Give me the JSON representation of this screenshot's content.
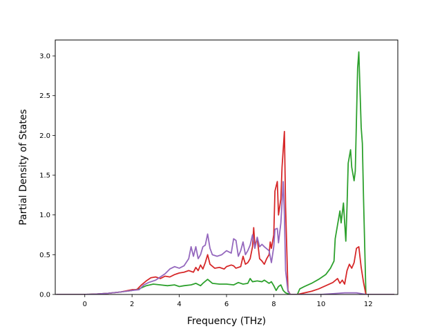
{
  "chart_data": {
    "type": "line",
    "title": "",
    "xlabel": "Frequency (THz)",
    "ylabel": "Partial Density of States",
    "xlim": [
      -1.25,
      13.25
    ],
    "ylim": [
      0.0,
      3.2
    ],
    "xticks": [
      0,
      2,
      4,
      6,
      8,
      10,
      12
    ],
    "xtick_labels": [
      "0",
      "2",
      "4",
      "6",
      "8",
      "10",
      "12"
    ],
    "yticks": [
      0.0,
      0.5,
      1.0,
      1.5,
      2.0,
      2.5,
      3.0
    ],
    "ytick_labels": [
      "0.0",
      "0.5",
      "1.0",
      "1.5",
      "2.0",
      "2.5",
      "3.0"
    ],
    "grid": false,
    "legend": "none",
    "series": [
      {
        "color": "#2ca02c",
        "points": [
          [
            -1.2,
            0.0
          ],
          [
            0.0,
            0.0
          ],
          [
            0.5,
            0.005
          ],
          [
            1.0,
            0.015
          ],
          [
            1.5,
            0.03
          ],
          [
            2.0,
            0.05
          ],
          [
            2.3,
            0.07
          ],
          [
            2.6,
            0.11
          ],
          [
            2.9,
            0.13
          ],
          [
            3.2,
            0.12
          ],
          [
            3.5,
            0.11
          ],
          [
            3.8,
            0.12
          ],
          [
            4.0,
            0.1
          ],
          [
            4.2,
            0.11
          ],
          [
            4.5,
            0.12
          ],
          [
            4.7,
            0.14
          ],
          [
            4.9,
            0.11
          ],
          [
            5.0,
            0.14
          ],
          [
            5.2,
            0.19
          ],
          [
            5.4,
            0.14
          ],
          [
            5.7,
            0.13
          ],
          [
            6.0,
            0.13
          ],
          [
            6.3,
            0.12
          ],
          [
            6.5,
            0.15
          ],
          [
            6.7,
            0.13
          ],
          [
            6.9,
            0.14
          ],
          [
            7.0,
            0.2
          ],
          [
            7.1,
            0.16
          ],
          [
            7.3,
            0.17
          ],
          [
            7.5,
            0.16
          ],
          [
            7.6,
            0.18
          ],
          [
            7.8,
            0.14
          ],
          [
            7.9,
            0.16
          ],
          [
            8.0,
            0.11
          ],
          [
            8.1,
            0.05
          ],
          [
            8.2,
            0.1
          ],
          [
            8.3,
            0.12
          ],
          [
            8.4,
            0.05
          ],
          [
            8.5,
            0.02
          ],
          [
            8.7,
            0.0
          ],
          [
            9.0,
            0.0
          ],
          [
            9.1,
            0.07
          ],
          [
            9.3,
            0.1
          ],
          [
            9.6,
            0.14
          ],
          [
            9.9,
            0.19
          ],
          [
            10.2,
            0.25
          ],
          [
            10.4,
            0.33
          ],
          [
            10.55,
            0.42
          ],
          [
            10.6,
            0.7
          ],
          [
            10.8,
            1.05
          ],
          [
            10.85,
            0.9
          ],
          [
            10.95,
            1.15
          ],
          [
            11.05,
            0.67
          ],
          [
            11.1,
            1.1
          ],
          [
            11.15,
            1.65
          ],
          [
            11.25,
            1.82
          ],
          [
            11.3,
            1.6
          ],
          [
            11.4,
            1.43
          ],
          [
            11.45,
            1.55
          ],
          [
            11.55,
            2.85
          ],
          [
            11.6,
            3.05
          ],
          [
            11.7,
            2.1
          ],
          [
            11.75,
            1.9
          ],
          [
            11.8,
            1.2
          ],
          [
            11.9,
            0.0
          ],
          [
            13.1,
            0.0
          ]
        ]
      },
      {
        "color": "#d62728",
        "points": [
          [
            -1.2,
            0.0
          ],
          [
            0.0,
            0.0
          ],
          [
            0.5,
            0.005
          ],
          [
            1.0,
            0.015
          ],
          [
            1.5,
            0.03
          ],
          [
            2.0,
            0.06
          ],
          [
            2.2,
            0.06
          ],
          [
            2.4,
            0.12
          ],
          [
            2.6,
            0.17
          ],
          [
            2.8,
            0.21
          ],
          [
            3.0,
            0.22
          ],
          [
            3.2,
            0.2
          ],
          [
            3.4,
            0.23
          ],
          [
            3.6,
            0.22
          ],
          [
            3.8,
            0.25
          ],
          [
            4.0,
            0.27
          ],
          [
            4.2,
            0.28
          ],
          [
            4.4,
            0.3
          ],
          [
            4.6,
            0.28
          ],
          [
            4.7,
            0.34
          ],
          [
            4.8,
            0.3
          ],
          [
            4.9,
            0.37
          ],
          [
            5.0,
            0.32
          ],
          [
            5.1,
            0.4
          ],
          [
            5.2,
            0.5
          ],
          [
            5.3,
            0.38
          ],
          [
            5.5,
            0.33
          ],
          [
            5.7,
            0.34
          ],
          [
            5.9,
            0.32
          ],
          [
            6.0,
            0.35
          ],
          [
            6.2,
            0.37
          ],
          [
            6.3,
            0.36
          ],
          [
            6.4,
            0.33
          ],
          [
            6.6,
            0.35
          ],
          [
            6.7,
            0.48
          ],
          [
            6.8,
            0.38
          ],
          [
            6.9,
            0.4
          ],
          [
            7.0,
            0.45
          ],
          [
            7.1,
            0.6
          ],
          [
            7.15,
            0.84
          ],
          [
            7.2,
            0.62
          ],
          [
            7.3,
            0.7
          ],
          [
            7.4,
            0.45
          ],
          [
            7.5,
            0.42
          ],
          [
            7.6,
            0.38
          ],
          [
            7.7,
            0.45
          ],
          [
            7.8,
            0.5
          ],
          [
            7.85,
            0.66
          ],
          [
            7.9,
            0.58
          ],
          [
            8.0,
            0.75
          ],
          [
            8.05,
            1.3
          ],
          [
            8.15,
            1.42
          ],
          [
            8.2,
            1.0
          ],
          [
            8.3,
            1.2
          ],
          [
            8.35,
            1.6
          ],
          [
            8.45,
            2.05
          ],
          [
            8.5,
            1.1
          ],
          [
            8.6,
            0.05
          ],
          [
            8.7,
            0.0
          ],
          [
            9.0,
            0.0
          ],
          [
            9.3,
            0.02
          ],
          [
            9.6,
            0.04
          ],
          [
            9.9,
            0.07
          ],
          [
            10.2,
            0.11
          ],
          [
            10.5,
            0.15
          ],
          [
            10.7,
            0.2
          ],
          [
            10.8,
            0.14
          ],
          [
            10.9,
            0.18
          ],
          [
            11.0,
            0.13
          ],
          [
            11.1,
            0.3
          ],
          [
            11.2,
            0.38
          ],
          [
            11.3,
            0.33
          ],
          [
            11.4,
            0.4
          ],
          [
            11.5,
            0.58
          ],
          [
            11.6,
            0.6
          ],
          [
            11.7,
            0.34
          ],
          [
            11.8,
            0.15
          ],
          [
            11.9,
            0.0
          ],
          [
            13.1,
            0.0
          ]
        ]
      },
      {
        "color": "#9467bd",
        "points": [
          [
            -1.2,
            0.0
          ],
          [
            0.0,
            0.0
          ],
          [
            0.5,
            0.005
          ],
          [
            1.0,
            0.015
          ],
          [
            1.5,
            0.03
          ],
          [
            2.0,
            0.05
          ],
          [
            2.3,
            0.06
          ],
          [
            2.5,
            0.12
          ],
          [
            2.7,
            0.15
          ],
          [
            3.0,
            0.18
          ],
          [
            3.2,
            0.22
          ],
          [
            3.4,
            0.26
          ],
          [
            3.6,
            0.32
          ],
          [
            3.8,
            0.35
          ],
          [
            4.0,
            0.33
          ],
          [
            4.2,
            0.36
          ],
          [
            4.4,
            0.45
          ],
          [
            4.5,
            0.6
          ],
          [
            4.6,
            0.48
          ],
          [
            4.7,
            0.6
          ],
          [
            4.8,
            0.45
          ],
          [
            4.9,
            0.5
          ],
          [
            5.0,
            0.6
          ],
          [
            5.1,
            0.62
          ],
          [
            5.2,
            0.76
          ],
          [
            5.3,
            0.58
          ],
          [
            5.4,
            0.5
          ],
          [
            5.6,
            0.48
          ],
          [
            5.8,
            0.5
          ],
          [
            6.0,
            0.55
          ],
          [
            6.2,
            0.52
          ],
          [
            6.3,
            0.7
          ],
          [
            6.4,
            0.68
          ],
          [
            6.5,
            0.48
          ],
          [
            6.6,
            0.55
          ],
          [
            6.7,
            0.66
          ],
          [
            6.8,
            0.5
          ],
          [
            6.9,
            0.55
          ],
          [
            7.0,
            0.62
          ],
          [
            7.1,
            0.75
          ],
          [
            7.2,
            0.58
          ],
          [
            7.3,
            0.72
          ],
          [
            7.4,
            0.6
          ],
          [
            7.5,
            0.63
          ],
          [
            7.6,
            0.6
          ],
          [
            7.8,
            0.55
          ],
          [
            7.9,
            0.4
          ],
          [
            8.0,
            0.6
          ],
          [
            8.05,
            0.82
          ],
          [
            8.15,
            0.83
          ],
          [
            8.2,
            0.65
          ],
          [
            8.3,
            0.9
          ],
          [
            8.4,
            1.42
          ],
          [
            8.45,
            1.0
          ],
          [
            8.5,
            0.3
          ],
          [
            8.6,
            0.04
          ],
          [
            8.7,
            0.0
          ],
          [
            9.0,
            0.0
          ],
          [
            10.0,
            0.0
          ],
          [
            10.5,
            0.01
          ],
          [
            11.0,
            0.02
          ],
          [
            11.5,
            0.02
          ],
          [
            11.9,
            0.0
          ],
          [
            13.1,
            0.0
          ]
        ]
      }
    ]
  }
}
